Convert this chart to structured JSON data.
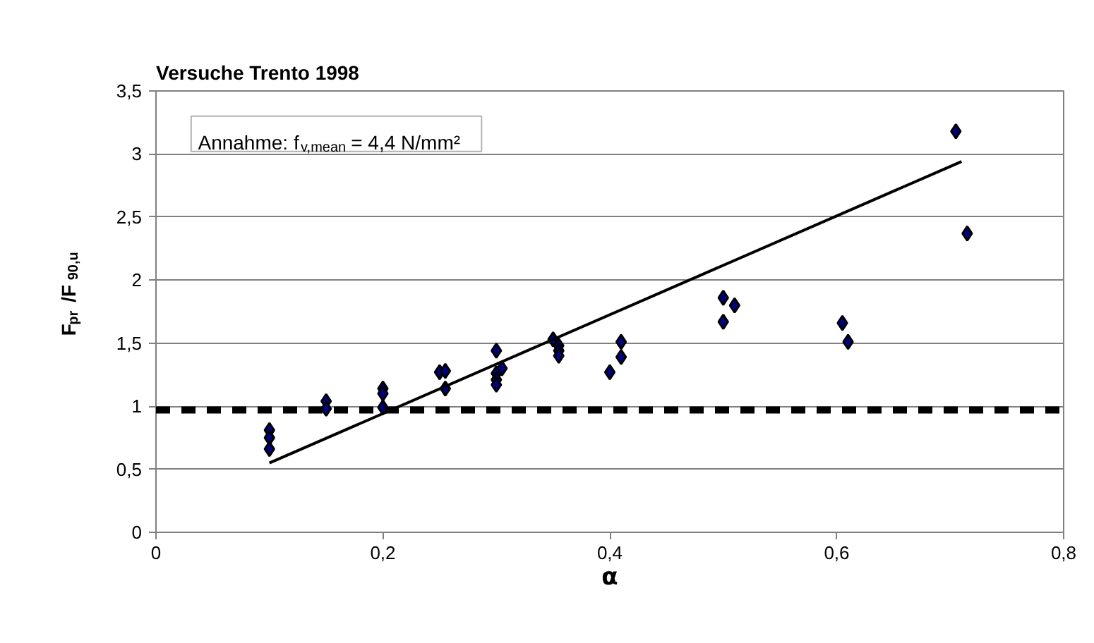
{
  "chart_data": {
    "type": "scatter",
    "title": "Versuche Trento 1998",
    "xlabel": "α",
    "ylabel": "F$_{pr}$/F$_{90,u}$",
    "annotations": [
      "Annahme: f$_{v,mean}$ = 4,4 N/mm²"
    ],
    "series": [
      {
        "color": "#000080",
        "marker": "diamond",
        "x": [
          0.1,
          0.1,
          0.1,
          0.15,
          0.15,
          0.2,
          0.2,
          0.2,
          0.25,
          0.255,
          0.255,
          0.3,
          0.305,
          0.3,
          0.3,
          0.3,
          0.35,
          0.355,
          0.355,
          0.355,
          0.4,
          0.41,
          0.41,
          0.5,
          0.51,
          0.5,
          0.605,
          0.61,
          0.705,
          0.715
        ],
        "values": [
          0.81,
          0.75,
          0.66,
          1.04,
          0.98,
          1.14,
          1.1,
          0.99,
          1.27,
          1.28,
          1.14,
          1.44,
          1.3,
          1.26,
          1.21,
          1.17,
          1.53,
          1.48,
          1.44,
          1.4,
          1.27,
          1.51,
          1.39,
          1.86,
          1.8,
          1.67,
          1.66,
          1.51,
          3.18,
          2.37
        ]
      },
      {
        "type": "line",
        "color": "#000000",
        "line_style": "solid",
        "x": [
          0.1,
          0.71
        ],
        "values": [
          0.55,
          2.94
        ]
      }
    ],
    "ref_lines": [
      {
        "axis": "y",
        "value": 0.97,
        "label": null,
        "color": "#000000",
        "line_style": "dashed"
      }
    ],
    "xlim": [
      0,
      0.8
    ],
    "ylim": [
      0,
      3.5
    ],
    "xticks": [
      0,
      {
        "value": 0.2,
        "label": "0,2"
      },
      {
        "value": 0.4,
        "label": "0,4"
      },
      {
        "value": 0.6,
        "label": "0,6"
      },
      {
        "value": 0.8,
        "label": "0,8"
      }
    ],
    "yticks": [
      0,
      {
        "value": 0.5,
        "label": "0,5"
      },
      1,
      {
        "value": 1.5,
        "label": "1,5"
      },
      2,
      {
        "value": 2.5,
        "label": "2,5"
      },
      3,
      {
        "value": 3.5,
        "label": "3,5"
      }
    ],
    "grid": "y"
  }
}
